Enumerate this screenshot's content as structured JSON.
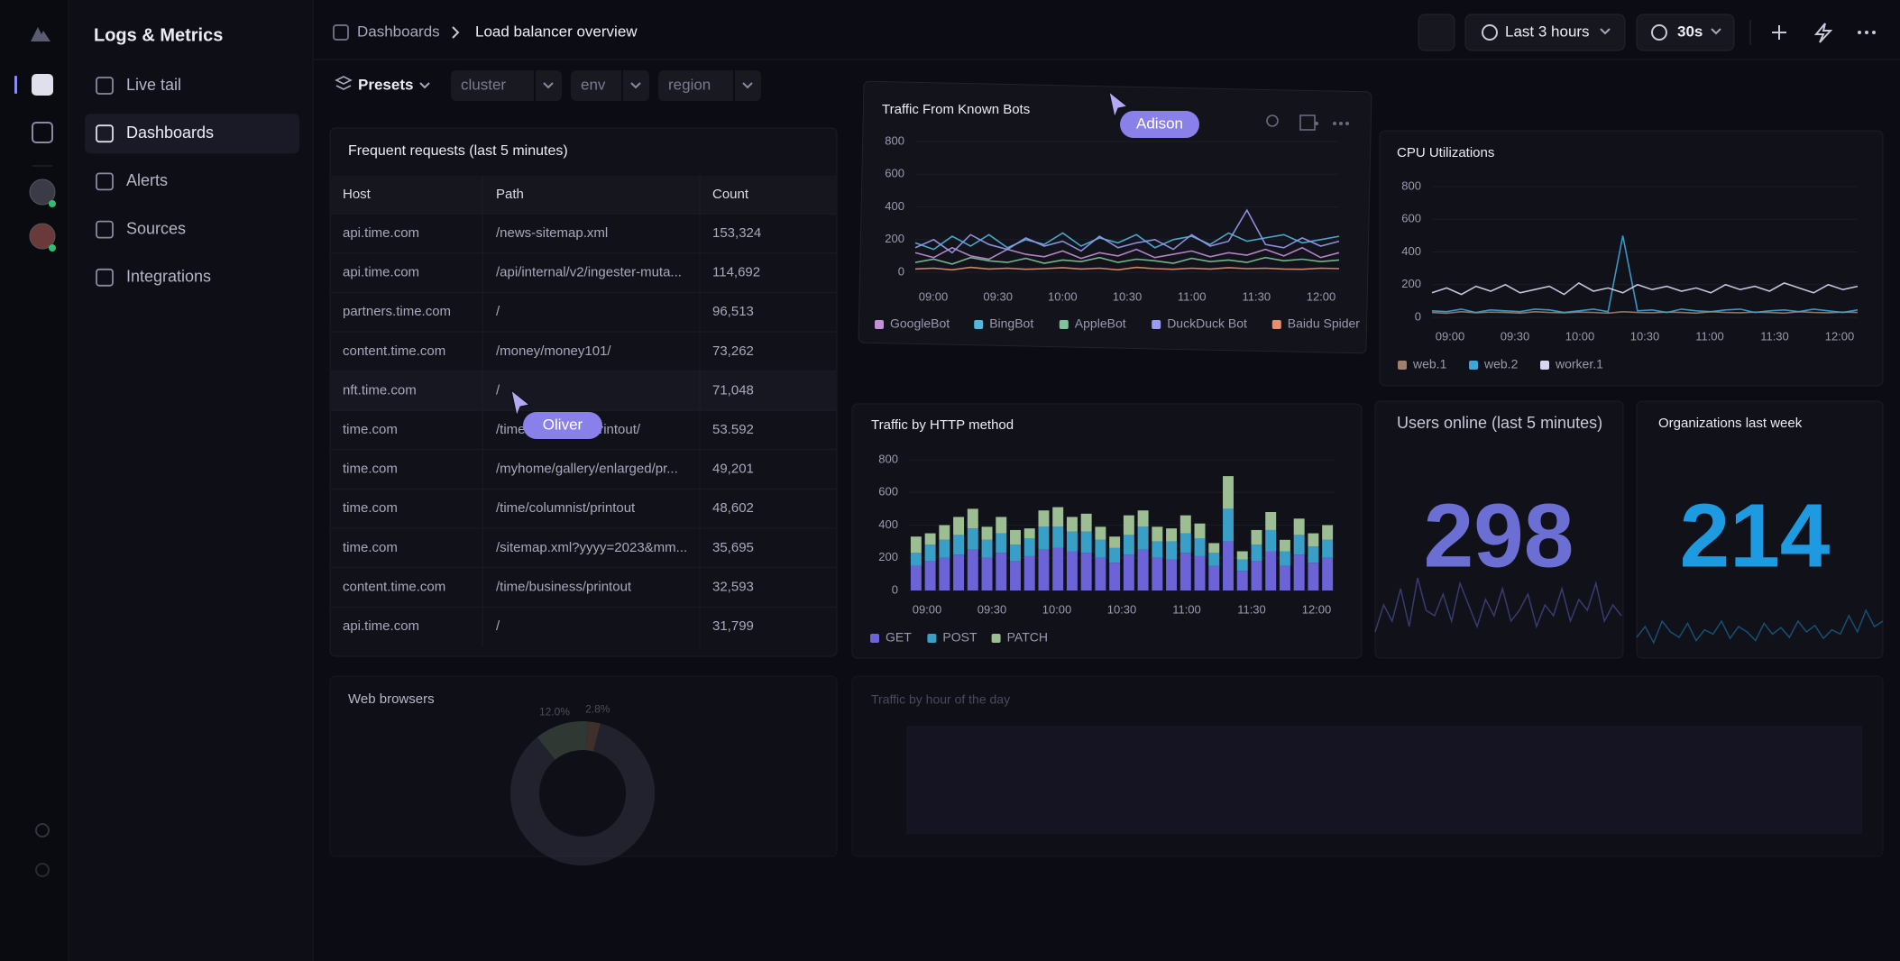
{
  "sidebar": {
    "title": "Logs & Metrics",
    "nav": [
      "Live tail",
      "Dashboards",
      "Alerts",
      "Sources",
      "Integrations"
    ]
  },
  "breadcrumb": [
    "Dashboards",
    "Load balancer overview"
  ],
  "toolbar": {
    "time_range": "Last 3 hours",
    "refresh": "30s"
  },
  "filters": {
    "presets": "Presets",
    "fields": [
      "cluster",
      "env",
      "region"
    ]
  },
  "table": {
    "title": "Frequent requests (last 5 minutes)",
    "columns": [
      "Host",
      "Path",
      "Count"
    ],
    "rows": [
      [
        "api.time.com",
        "/news-sitemap.xml",
        "153,324"
      ],
      [
        "api.time.com",
        "/api/internal/v2/ingester-muta...",
        "114,692"
      ],
      [
        "partners.time.com",
        "/",
        "96,513"
      ],
      [
        "content.time.com",
        "/money/money101/",
        "73,262"
      ],
      [
        "nft.time.com",
        "/",
        "71,048"
      ],
      [
        "time.com",
        "/time/magazine/printout/",
        "53.592"
      ],
      [
        "time.com",
        "/myhome/gallery/enlarged/pr...",
        "49,201"
      ],
      [
        "time.com",
        "/time/columnist/printout",
        "48,602"
      ],
      [
        "time.com",
        "/sitemap.xml?yyyy=2023&mm...",
        "35,695"
      ],
      [
        "content.time.com",
        "/time/business/printout",
        "32,593"
      ],
      [
        "api.time.com",
        "/",
        "31,799"
      ]
    ]
  },
  "charts": [
    {
      "type": "line",
      "title": "Traffic From Known Bots",
      "xticks": [
        "09:00",
        "09:30",
        "10:00",
        "10:30",
        "11:00",
        "11:30",
        "12:00"
      ],
      "ylim": [
        0,
        800
      ],
      "yticks": [
        0,
        200,
        400,
        600,
        800
      ],
      "series": [
        {
          "name": "GoogleBot",
          "color": "#c58fd6",
          "values": [
            120,
            90,
            150,
            100,
            80,
            140,
            110,
            95,
            130,
            85,
            120,
            100,
            140,
            90,
            110,
            130,
            95,
            120,
            105,
            140,
            100,
            150,
            90,
            120
          ]
        },
        {
          "name": "BingBot",
          "color": "#4fb8dd",
          "values": [
            180,
            140,
            220,
            160,
            230,
            150,
            200,
            170,
            240,
            160,
            210,
            180,
            230,
            150,
            200,
            220,
            170,
            240,
            190,
            210,
            230,
            180,
            200,
            220
          ]
        },
        {
          "name": "AppleBot",
          "color": "#7fc59a",
          "values": [
            60,
            80,
            50,
            90,
            70,
            60,
            85,
            55,
            75,
            65,
            90,
            60,
            80,
            70,
            55,
            85,
            65,
            75,
            60,
            90,
            70,
            80,
            65,
            75
          ]
        },
        {
          "name": "DuckDuck Bot",
          "color": "#9a9cf0",
          "values": [
            150,
            200,
            120,
            230,
            170,
            140,
            210,
            160,
            190,
            130,
            220,
            150,
            180,
            200,
            140,
            230,
            160,
            190,
            380,
            170,
            150,
            210,
            160,
            190
          ]
        },
        {
          "name": "Baidu Spider",
          "color": "#e8906a",
          "values": [
            20,
            25,
            15,
            30,
            20,
            25,
            18,
            22,
            28,
            20,
            25,
            15,
            30,
            22,
            18,
            25,
            20,
            28,
            22,
            25,
            20,
            18,
            25,
            22
          ]
        }
      ]
    },
    {
      "type": "line",
      "title": "CPU Utilizations",
      "xticks": [
        "09:00",
        "09:30",
        "10:00",
        "10:30",
        "11:00",
        "11:30",
        "12:00"
      ],
      "ylim": [
        0,
        800
      ],
      "yticks": [
        0,
        200,
        400,
        600,
        800
      ],
      "series": [
        {
          "name": "web.1",
          "color": "#a0806a",
          "values": [
            30,
            25,
            35,
            28,
            32,
            30,
            26,
            34,
            30,
            28,
            32,
            30,
            26,
            34,
            30,
            28,
            32,
            30,
            26,
            34,
            30,
            28,
            32,
            30,
            26,
            34,
            30,
            28,
            32,
            30
          ]
        },
        {
          "name": "web.2",
          "color": "#3ea6d6",
          "values": [
            40,
            35,
            50,
            30,
            45,
            40,
            35,
            50,
            45,
            30,
            40,
            50,
            35,
            500,
            40,
            45,
            30,
            50,
            40,
            35,
            45,
            50,
            30,
            40,
            45,
            35,
            50,
            40,
            30,
            45
          ]
        },
        {
          "name": "worker.1",
          "color": "#d7d8f0",
          "values": [
            150,
            180,
            140,
            190,
            160,
            200,
            150,
            170,
            190,
            140,
            210,
            160,
            180,
            150,
            200,
            170,
            190,
            160,
            180,
            150,
            200,
            170,
            190,
            160,
            210,
            180,
            150,
            200,
            170,
            190
          ]
        }
      ]
    },
    {
      "type": "stacked_bar",
      "title": "Traffic by HTTP method",
      "xticks": [
        "09:00",
        "09:30",
        "10:00",
        "10:30",
        "11:00",
        "11:30",
        "12:00"
      ],
      "ylim": [
        0,
        800
      ],
      "yticks": [
        0,
        200,
        400,
        600,
        800
      ],
      "series": [
        {
          "name": "GET",
          "color": "#6b63d6",
          "values": [
            150,
            180,
            200,
            220,
            250,
            200,
            230,
            180,
            210,
            250,
            260,
            240,
            230,
            200,
            170,
            220,
            250,
            200,
            190,
            230,
            210,
            150,
            300,
            120,
            180,
            240,
            150,
            220,
            170,
            200
          ]
        },
        {
          "name": "POST",
          "color": "#3a9fc7",
          "values": [
            80,
            100,
            110,
            120,
            130,
            110,
            120,
            100,
            110,
            140,
            130,
            120,
            130,
            110,
            90,
            120,
            140,
            100,
            110,
            120,
            110,
            80,
            200,
            70,
            100,
            130,
            90,
            120,
            100,
            110
          ]
        },
        {
          "name": "PATCH",
          "color": "#9dbd92",
          "values": [
            100,
            70,
            90,
            110,
            120,
            80,
            100,
            90,
            60,
            100,
            120,
            90,
            110,
            80,
            70,
            120,
            100,
            90,
            80,
            110,
            90,
            60,
            200,
            50,
            90,
            110,
            70,
            100,
            80,
            90
          ]
        }
      ]
    }
  ],
  "stats": [
    {
      "title": "Users online (last 5 minutes)",
      "value": 298,
      "color": "#6b6fd4",
      "ylim": [
        0,
        100
      ],
      "sparkline": [
        20,
        45,
        30,
        60,
        25,
        70,
        40,
        35,
        55,
        30,
        65,
        45,
        25,
        50,
        35,
        60,
        30,
        40,
        55,
        25,
        45,
        35,
        60,
        30,
        50,
        40,
        65,
        30,
        45,
        35
      ]
    },
    {
      "title": "Organizations last week",
      "value": 214,
      "color": "#1e9be0",
      "ylim": [
        0,
        100
      ],
      "sparkline": [
        15,
        25,
        10,
        30,
        20,
        15,
        28,
        12,
        22,
        18,
        30,
        14,
        25,
        20,
        12,
        28,
        18,
        24,
        15,
        30,
        20,
        26,
        14,
        22,
        18,
        35,
        20,
        40,
        25,
        30
      ]
    }
  ],
  "web_browsers": {
    "title": "Web browsers",
    "values": [
      85.2,
      12.0,
      2.8
    ],
    "value_labels": [
      null,
      "12.0%",
      "2.8%"
    ]
  },
  "traffic_by_hour": {
    "title": "Traffic by hour of the day"
  },
  "cursors": [
    "Adison",
    "Oliver"
  ]
}
